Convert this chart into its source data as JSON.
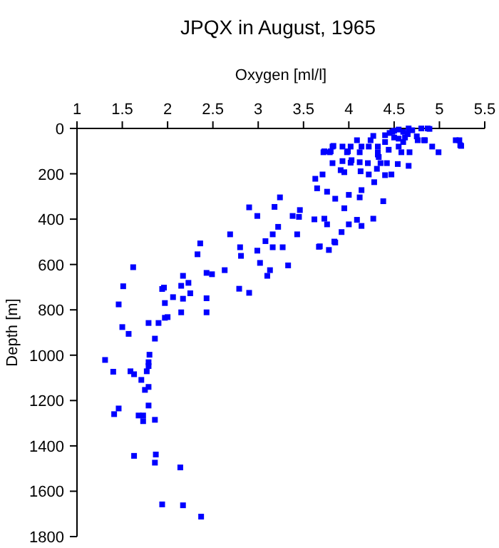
{
  "chart_data": {
    "type": "scatter",
    "title": "JPQX in August, 1965",
    "xlabel": "Oxygen [ml/l]",
    "ylabel": "Depth [m]",
    "xlim": [
      1,
      5.5
    ],
    "xticks": [
      1,
      1.5,
      2,
      2.5,
      3,
      3.5,
      4,
      4.5,
      5,
      5.5
    ],
    "ylim": [
      1800,
      0
    ],
    "yticks": [
      0,
      200,
      400,
      600,
      800,
      1000,
      1200,
      1400,
      1600,
      1800
    ],
    "marker": "square",
    "series": [
      {
        "color": "#0000ff",
        "x": [
          2.37,
          2.17,
          1.94,
          2.14,
          1.86,
          1.87,
          1.63,
          1.73,
          1.86,
          1.68,
          1.73,
          1.41,
          1.46,
          1.79,
          1.79,
          1.75,
          1.71,
          1.63,
          1.59,
          1.77,
          1.4,
          1.31,
          1.79,
          1.79,
          1.8,
          1.86,
          1.57,
          1.5,
          1.79,
          1.9,
          1.97,
          2.0,
          1.46,
          1.97,
          2.15,
          2.43,
          2.06,
          2.17,
          2.43,
          2.25,
          1.96,
          1.94,
          1.51,
          2.15,
          2.23,
          2.17,
          2.43,
          2.49,
          1.62,
          2.63,
          2.79,
          2.9,
          3.02,
          3.13,
          3.1,
          3.33,
          2.36,
          2.33,
          2.69,
          2.8,
          2.81,
          2.9,
          3.18,
          2.99,
          3.24,
          3.08,
          3.16,
          3.22,
          3.16,
          3.27,
          2.99,
          3.43,
          3.38,
          3.45,
          3.46,
          3.62,
          3.73,
          3.76,
          3.92,
          4.0,
          3.68,
          3.78,
          3.85,
          3.95,
          3.85,
          4.0,
          3.65,
          3.76,
          3.63,
          3.71,
          3.82,
          3.91,
          3.95,
          3.93,
          4.02,
          3.73,
          3.8,
          3.83,
          3.93,
          3.99,
          4.09,
          4.27,
          4.24,
          3.82,
          4.02,
          4.14,
          4.22,
          4.32,
          3.72,
          3.79,
          3.98,
          4.12,
          4.32,
          4.44,
          4.55,
          4.67,
          4.58,
          4.03,
          4.12,
          4.21,
          4.35,
          4.42,
          4.54,
          4.32,
          4.33,
          4.66,
          4.13,
          4.22,
          4.31,
          4.4,
          4.47,
          4.28,
          4.14,
          4.12,
          4.38,
          4.27,
          4.09,
          4.14,
          3.84,
          3.67,
          4.66,
          4.87,
          5.18,
          5.23,
          4.99,
          4.76,
          4.84,
          4.89,
          5.22,
          5.24,
          4.92,
          4.83,
          4.4,
          4.45,
          4.5,
          4.55,
          4.6,
          4.65,
          4.7,
          4.75,
          4.5,
          4.55,
          4.6,
          4.4,
          4.8,
          4.48,
          4.62
        ],
        "values": [
          1712,
          1662,
          1658,
          1495,
          1474,
          1438,
          1444,
          1291,
          1285,
          1266,
          1266,
          1260,
          1235,
          1222,
          1140,
          1153,
          1109,
          1084,
          1071,
          1071,
          1073,
          1021,
          1048,
          1031,
          998,
          927,
          906,
          876,
          858,
          858,
          835,
          832,
          776,
          770,
          811,
          811,
          744,
          751,
          749,
          727,
          702,
          708,
          696,
          694,
          681,
          650,
          637,
          643,
          612,
          625,
          707,
          725,
          593,
          625,
          650,
          604,
          507,
          555,
          467,
          524,
          562,
          348,
          346,
          386,
          304,
          497,
          467,
          434,
          524,
          524,
          539,
          467,
          386,
          390,
          360,
          401,
          398,
          423,
          457,
          423,
          520,
          536,
          503,
          352,
          310,
          293,
          264,
          279,
          222,
          203,
          153,
          184,
          193,
          144,
          151,
          101,
          101,
          77,
          80,
          101,
          52,
          33,
          52,
          80,
          80,
          80,
          80,
          80,
          105,
          105,
          105,
          105,
          105,
          94,
          80,
          105,
          105,
          140,
          149,
          153,
          153,
          153,
          157,
          115,
          126,
          165,
          189,
          203,
          178,
          206,
          203,
          237,
          272,
          304,
          321,
          398,
          403,
          430,
          499,
          522,
          0,
          0,
          52,
          74,
          105,
          52,
          52,
          2,
          52,
          77,
          80,
          52,
          30,
          20,
          10,
          5,
          15,
          25,
          8,
          35,
          40,
          45,
          60,
          60,
          0,
          15,
          40
        ]
      }
    ]
  }
}
